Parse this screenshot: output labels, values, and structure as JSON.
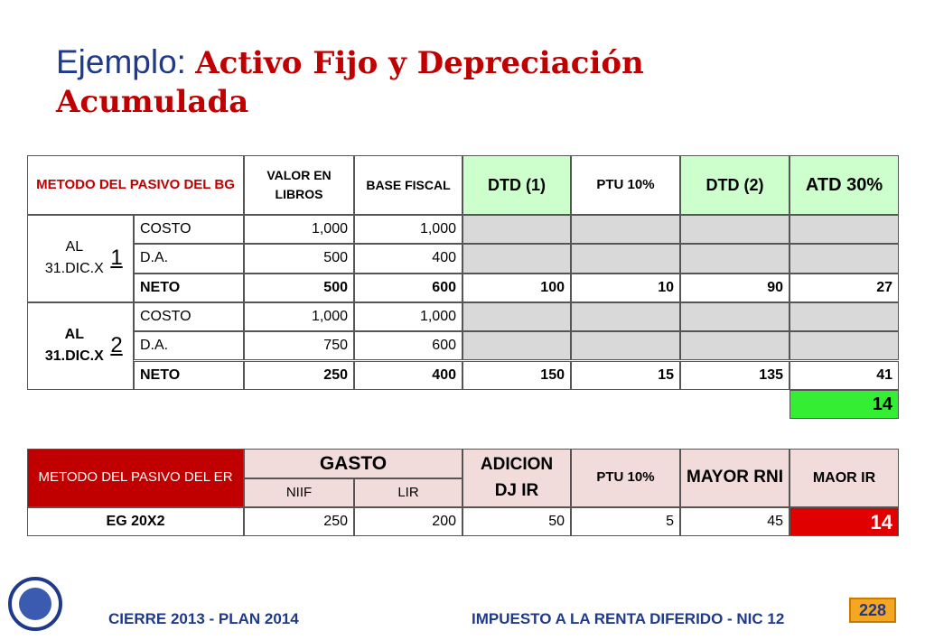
{
  "header": {
    "title_prefix": "Ejemplo:",
    "title_main": "Activo Fijo y Depreciación Acumulada"
  },
  "table1": {
    "headers": [
      "METODO DEL PASIVO DEL BG",
      "VALOR EN LIBROS",
      "BASE FISCAL",
      "DTD (1)",
      "PTU 10%",
      "DTD (2)",
      "ATD 30%"
    ],
    "groups": [
      {
        "label": "AL 31.DIC.X",
        "suffix": "1",
        "rows": [
          {
            "label": "COSTO",
            "values": [
              "1,000",
              "1,000"
            ]
          },
          {
            "label": "D.A.",
            "values": [
              "500",
              "400"
            ]
          },
          {
            "label": "NETO",
            "values": [
              "500",
              "600",
              "100",
              "10",
              "90",
              "27"
            ]
          }
        ]
      },
      {
        "label": "AL 31.DIC.X",
        "suffix": "2",
        "rows": [
          {
            "label": "COSTO",
            "values": [
              "1,000",
              "1,000"
            ]
          },
          {
            "label": "D.A.",
            "values": [
              "750",
              "600"
            ]
          },
          {
            "label": "NETO",
            "values": [
              "250",
              "400",
              "150",
              "15",
              "135",
              "41"
            ]
          }
        ]
      }
    ],
    "total": "14"
  },
  "table2": {
    "headers": [
      "METODO DEL PASIVO DEL ER",
      "GASTO",
      "ADICION DJ IR",
      "PTU 10%",
      "MAYOR RNI",
      "MAOR IR"
    ],
    "subheaders": [
      "NIIF",
      "LIR"
    ],
    "row": {
      "label": "EG 20X2",
      "values": [
        "250",
        "200",
        "50",
        "5",
        "45",
        "14"
      ]
    }
  },
  "footer": {
    "left": "CIERRE 2013 - PLAN 2014",
    "right": "IMPUESTO A LA RENTA DIFERIDO - NIC 12",
    "page": "228"
  }
}
